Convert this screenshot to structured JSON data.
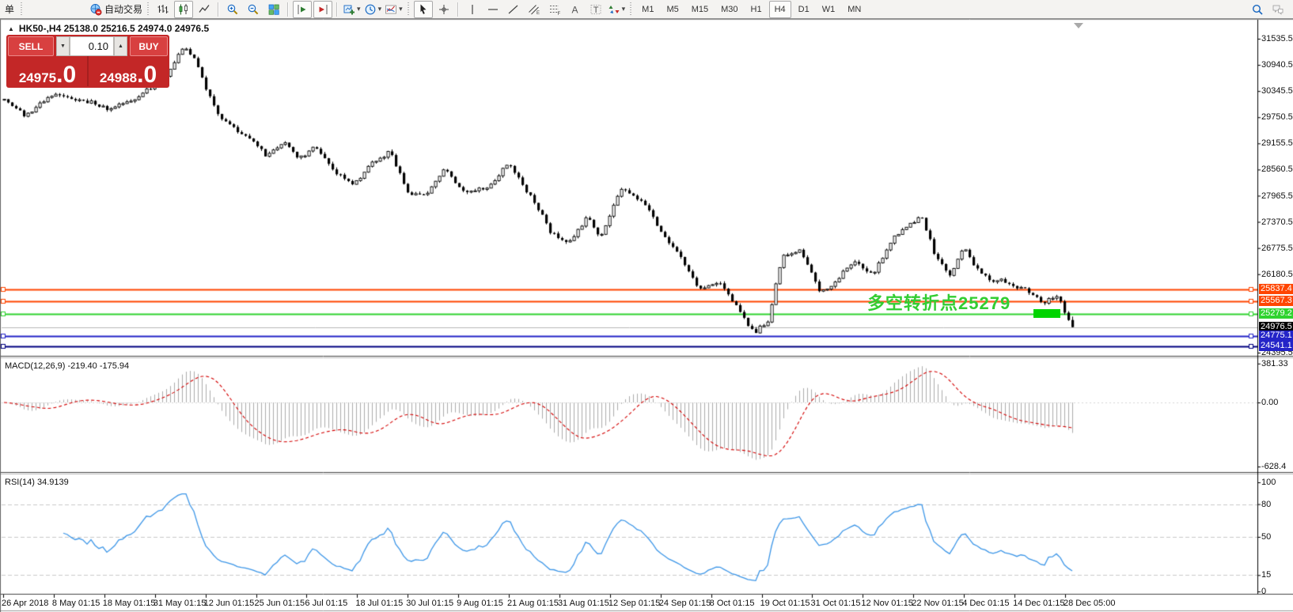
{
  "toolbar": {
    "items": [
      {
        "name": "new-order-button",
        "kind": "text",
        "label": "单"
      },
      {
        "name": "toolbar-grip",
        "kind": "grip"
      },
      {
        "name": "metaeditor-icon",
        "kind": "icon"
      },
      {
        "name": "community-icon",
        "kind": "icon"
      },
      {
        "name": "signals-icon",
        "kind": "icon"
      },
      {
        "name": "autotrading-button",
        "kind": "iconlabel",
        "icon": "autotrading-icon",
        "label": "自动交易"
      },
      {
        "name": "toolbar-grip",
        "kind": "grip"
      },
      {
        "name": "chart-bars-button",
        "kind": "icon",
        "icon": "bars"
      },
      {
        "name": "chart-candles-button",
        "kind": "icon",
        "icon": "candles",
        "active": true
      },
      {
        "name": "chart-line-button",
        "kind": "icon",
        "icon": "linechart"
      },
      {
        "name": "toolbar-separator",
        "kind": "sep"
      },
      {
        "name": "zoom-in-button",
        "kind": "icon",
        "icon": "zoomin"
      },
      {
        "name": "zoom-out-button",
        "kind": "icon",
        "icon": "zoomout"
      },
      {
        "name": "tile-windows-button",
        "kind": "icon",
        "icon": "tiles"
      },
      {
        "name": "toolbar-separator",
        "kind": "sep"
      },
      {
        "name": "autoscroll-button",
        "kind": "icon",
        "icon": "autoscroll",
        "active": true
      },
      {
        "name": "chart-shift-button",
        "kind": "icon",
        "icon": "shift",
        "active": true
      },
      {
        "name": "toolbar-separator",
        "kind": "sep"
      },
      {
        "name": "new-chart-button",
        "kind": "icon",
        "icon": "newchart",
        "caret": true
      },
      {
        "name": "periods-button",
        "kind": "icon",
        "icon": "clock",
        "caret": true
      },
      {
        "name": "templates-button",
        "kind": "icon",
        "icon": "indicators",
        "caret": true
      },
      {
        "name": "toolbar-grip",
        "kind": "grip"
      },
      {
        "name": "cursor-button",
        "kind": "icon",
        "icon": "cursor",
        "active": true
      },
      {
        "name": "crosshair-button",
        "kind": "icon",
        "icon": "crosshair"
      },
      {
        "name": "toolbar-separator",
        "kind": "sep"
      },
      {
        "name": "vertical-line-button",
        "kind": "icon",
        "icon": "vline"
      },
      {
        "name": "horizontal-line-button",
        "kind": "icon",
        "icon": "hline"
      },
      {
        "name": "trendline-button",
        "kind": "icon",
        "icon": "trend"
      },
      {
        "name": "channel-button",
        "kind": "icon",
        "icon": "channel"
      },
      {
        "name": "fibonacci-button",
        "kind": "icon",
        "icon": "fibo"
      },
      {
        "name": "text-button",
        "kind": "icon",
        "icon": "textA"
      },
      {
        "name": "label-button",
        "kind": "icon",
        "icon": "textT"
      },
      {
        "name": "arrows-button",
        "kind": "icon",
        "icon": "arrows",
        "caret": true
      },
      {
        "name": "toolbar-grip",
        "kind": "grip"
      }
    ],
    "timeframes": [
      {
        "label": "M1"
      },
      {
        "label": "M5"
      },
      {
        "label": "M15"
      },
      {
        "label": "M30"
      },
      {
        "label": "H1"
      },
      {
        "label": "H4",
        "active": true
      },
      {
        "label": "D1"
      },
      {
        "label": "W1"
      },
      {
        "label": "MN"
      }
    ],
    "right_icons": [
      {
        "name": "search-icon",
        "icon": "search"
      },
      {
        "name": "chat-icon",
        "icon": "chat"
      }
    ]
  },
  "chart": {
    "title_arrow": "▲",
    "symbol_title": "HK50-,H4  25138.0 25216.5 24974.0 24976.5",
    "trade_panel": {
      "sell_label": "SELL",
      "buy_label": "BUY",
      "volume": "0.10",
      "spin_down": "▼",
      "spin_up": "▲",
      "sell_price_small": "24975",
      "sell_price_big": ".0",
      "buy_price_small": "24988",
      "buy_price_big": ".0"
    },
    "annotation": {
      "text": "多空转折点25279",
      "color": "#32CD32"
    },
    "price_axis_labels": [
      {
        "value": 31535.5,
        "label": "31535.5"
      },
      {
        "value": 30940.5,
        "label": "30940.5"
      },
      {
        "value": 30345.5,
        "label": "30345.5"
      },
      {
        "value": 29750.5,
        "label": "29750.5"
      },
      {
        "value": 29155.5,
        "label": "29155.5"
      },
      {
        "value": 28560.5,
        "label": "28560.5"
      },
      {
        "value": 27965.5,
        "label": "27965.5"
      },
      {
        "value": 27370.5,
        "label": "27370.5"
      },
      {
        "value": 26775.5,
        "label": "26775.5"
      },
      {
        "value": 26180.5,
        "label": "26180.5"
      },
      {
        "value": 24395.5,
        "label": "24395.5"
      }
    ],
    "h_lines": [
      {
        "label": "25837.4",
        "price": 25837.4,
        "color": "#FF4500",
        "labelBg": "#FF4500",
        "width": 2
      },
      {
        "label": "25567.3",
        "price": 25567.3,
        "color": "#FF4500",
        "labelBg": "#FF4500",
        "width": 2
      },
      {
        "label": "25279.2",
        "price": 25279.2,
        "color": "#2FD32F",
        "labelBg": "#2FD32F",
        "width": 2
      },
      {
        "label": "24976.5",
        "price": 24976.5,
        "color": "#B8B8B8",
        "labelBg": "#000000",
        "width": 1,
        "bid": true
      },
      {
        "label": "24775.1",
        "price": 24775.1,
        "color": "#2424C8",
        "labelBg": "#2424C8",
        "width": 2
      },
      {
        "label": "24541.1",
        "price": 24541.1,
        "color": "#000080",
        "labelBg": "#2424C8",
        "width": 2
      }
    ]
  },
  "macd": {
    "label": "MACD(12,26,9)",
    "value1": "-219.40",
    "value2": "-175.94",
    "axis_labels": [
      {
        "value": 381.33,
        "label": "381.33"
      },
      {
        "value": 0,
        "label": "0.00"
      },
      {
        "value": -628.4,
        "label": "-628.4"
      }
    ]
  },
  "rsi": {
    "label": "RSI(14)",
    "value": "34.9139",
    "axis_labels": [
      {
        "value": 100,
        "label": "100"
      },
      {
        "value": 80,
        "label": "80"
      },
      {
        "value": 50,
        "label": "50"
      },
      {
        "value": 15,
        "label": "15"
      },
      {
        "value": 0,
        "label": "0"
      }
    ],
    "dashed_levels": [
      80,
      50,
      15
    ]
  },
  "dates": [
    "26 Apr 2018",
    "8 May 01:15",
    "18 May 01:15",
    "31 May 01:15",
    "12 Jun 01:15",
    "25 Jun 01:15",
    "6 Jul 01:15",
    "18 Jul 01:15",
    "30 Jul 01:15",
    "9 Aug 01:15",
    "21 Aug 01:15",
    "31 Aug 01:15",
    "12 Sep 01:15",
    "24 Sep 01:15",
    "8 Oct 01:15",
    "19 Oct 01:15",
    "31 Oct 01:15",
    "12 Nov 01:15",
    "22 Nov 01:15",
    "4 Dec 01:15",
    "14 Dec 01:15",
    "28 Dec 05:00"
  ],
  "chart_data": {
    "type": "candlestick",
    "symbol": "HK50-",
    "timeframe": "H4",
    "current_bar": {
      "open": 25138.0,
      "high": 25216.5,
      "low": 24974.0,
      "close": 24976.5
    },
    "price_axis": {
      "min": 24395.5,
      "max": 31535.5,
      "tick_step": 595
    },
    "n_candles": 271,
    "anchors": [
      [
        0,
        30150
      ],
      [
        0.02,
        29780
      ],
      [
        0.045,
        30280
      ],
      [
        0.07,
        30150
      ],
      [
        0.1,
        29950
      ],
      [
        0.125,
        30200
      ],
      [
        0.15,
        30600
      ],
      [
        0.168,
        31350
      ],
      [
        0.178,
        31100
      ],
      [
        0.19,
        30300
      ],
      [
        0.205,
        29650
      ],
      [
        0.225,
        29350
      ],
      [
        0.245,
        28870
      ],
      [
        0.262,
        29200
      ],
      [
        0.275,
        28800
      ],
      [
        0.29,
        29100
      ],
      [
        0.31,
        28500
      ],
      [
        0.325,
        28230
      ],
      [
        0.345,
        28680
      ],
      [
        0.36,
        29000
      ],
      [
        0.378,
        28030
      ],
      [
        0.395,
        27950
      ],
      [
        0.412,
        28580
      ],
      [
        0.428,
        28060
      ],
      [
        0.45,
        28120
      ],
      [
        0.472,
        28700
      ],
      [
        0.49,
        28050
      ],
      [
        0.512,
        27150
      ],
      [
        0.528,
        26870
      ],
      [
        0.545,
        27470
      ],
      [
        0.558,
        27050
      ],
      [
        0.578,
        28100
      ],
      [
        0.598,
        27850
      ],
      [
        0.615,
        27150
      ],
      [
        0.635,
        26480
      ],
      [
        0.652,
        25780
      ],
      [
        0.668,
        26020
      ],
      [
        0.685,
        25450
      ],
      [
        0.703,
        24820
      ],
      [
        0.715,
        25150
      ],
      [
        0.728,
        26550
      ],
      [
        0.745,
        26800
      ],
      [
        0.762,
        25820
      ],
      [
        0.778,
        25980
      ],
      [
        0.795,
        26480
      ],
      [
        0.812,
        26150
      ],
      [
        0.832,
        27000
      ],
      [
        0.858,
        27520
      ],
      [
        0.872,
        26600
      ],
      [
        0.885,
        26120
      ],
      [
        0.898,
        26800
      ],
      [
        0.91,
        26300
      ],
      [
        0.923,
        26050
      ],
      [
        0.942,
        25980
      ],
      [
        0.958,
        25800
      ],
      [
        0.972,
        25560
      ],
      [
        0.985,
        25700
      ],
      [
        0.9963,
        25138
      ],
      [
        1,
        24976.5
      ]
    ],
    "indicators": [
      {
        "name": "MACD",
        "params": [
          12,
          26,
          9
        ],
        "values_shown": [
          -219.4,
          -175.94
        ],
        "range": [
          -628.4,
          381.33
        ]
      },
      {
        "name": "RSI",
        "params": [
          14
        ],
        "value_shown": 34.9139,
        "levels": [
          80,
          50,
          15
        ]
      }
    ],
    "grid": false,
    "x_range": [
      "26 Apr 2018",
      "28 Dec 2018 05:00"
    ]
  },
  "colors": {
    "line_orange": "#FF4500",
    "line_green": "#2FD32F",
    "line_blue": "#2424C8",
    "line_navy": "#000080",
    "bid_gray": "#B8B8B8",
    "panel_red": "#c32727",
    "macd_hist": "#ABABAB",
    "macd_signal": "#D40000",
    "rsi_line": "#3C96E8",
    "annotation_green": "#32CD32"
  }
}
